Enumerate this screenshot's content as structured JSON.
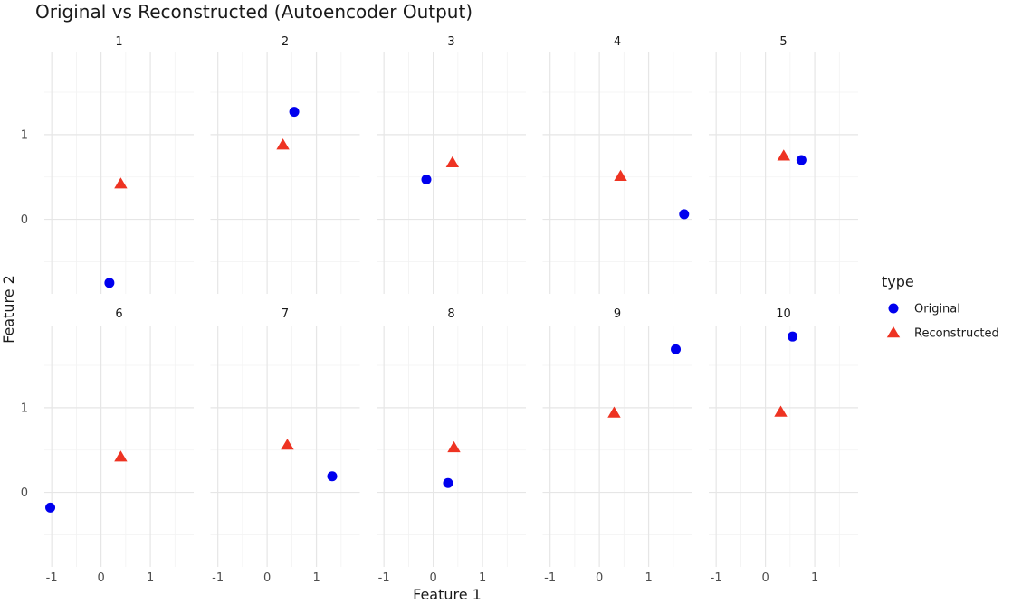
{
  "chart_data": {
    "type": "scatter",
    "title": "Original vs Reconstructed (Autoencoder Output)",
    "xlabel": "Feature 1",
    "ylabel": "Feature 2",
    "x_ticks": [
      "-1",
      "0",
      "1"
    ],
    "y_ticks": [
      "0",
      "1"
    ],
    "xlim": [
      -1.15,
      1.88
    ],
    "ylim": [
      -0.88,
      1.97
    ],
    "grid": true,
    "legend": {
      "title": "type",
      "position": "right",
      "entries": [
        {
          "label": "Original",
          "shape": "circle",
          "color": "#0000ee"
        },
        {
          "label": "Reconstructed",
          "shape": "triangle",
          "color": "#ee3322"
        }
      ]
    },
    "panels": [
      {
        "label": "1",
        "original": [
          0.17,
          -0.75
        ],
        "reconstructed": [
          0.4,
          0.42
        ]
      },
      {
        "label": "2",
        "original": [
          0.55,
          1.27
        ],
        "reconstructed": [
          0.32,
          0.88
        ]
      },
      {
        "label": "3",
        "original": [
          -0.14,
          0.47
        ],
        "reconstructed": [
          0.39,
          0.67
        ]
      },
      {
        "label": "4",
        "original": [
          1.72,
          0.06
        ],
        "reconstructed": [
          0.43,
          0.51
        ]
      },
      {
        "label": "5",
        "original": [
          0.73,
          0.7
        ],
        "reconstructed": [
          0.37,
          0.75
        ]
      },
      {
        "label": "6",
        "original": [
          -1.03,
          -0.18
        ],
        "reconstructed": [
          0.4,
          0.42
        ]
      },
      {
        "label": "7",
        "original": [
          1.32,
          0.19
        ],
        "reconstructed": [
          0.41,
          0.56
        ]
      },
      {
        "label": "8",
        "original": [
          0.3,
          0.11
        ],
        "reconstructed": [
          0.42,
          0.53
        ]
      },
      {
        "label": "9",
        "original": [
          1.55,
          1.69
        ],
        "reconstructed": [
          0.3,
          0.94
        ]
      },
      {
        "label": "10",
        "original": [
          0.55,
          1.84
        ],
        "reconstructed": [
          0.31,
          0.95
        ]
      }
    ]
  }
}
